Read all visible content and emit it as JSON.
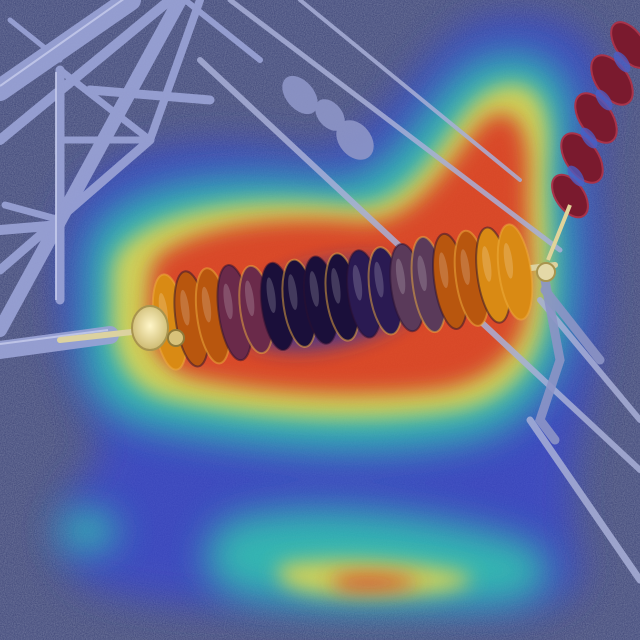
{
  "image": {
    "subject": "insulator-string-heatmap-overlay",
    "colors": {
      "background": "#3b4376",
      "ground_speckle": "#5a6180",
      "tower_steel": "#8a93c8",
      "tower_highlight": "#c7cdef",
      "insulator_disc_cold": "#1a0f3a",
      "insulator_disc_warm": "#b8560e",
      "insulator_disc_hot": "#d98a14",
      "hardware": "#e8dfb0",
      "heat_low": "#2a3bd0",
      "heat_mid": "#2ed0c0",
      "heat_high": "#f0e040",
      "heat_peak": "#e23a1e",
      "right_insulator": "#7a1a2a"
    },
    "icons": [
      "transmission-tower",
      "insulator-string",
      "conductor-cable",
      "heatmap-overlay"
    ]
  }
}
